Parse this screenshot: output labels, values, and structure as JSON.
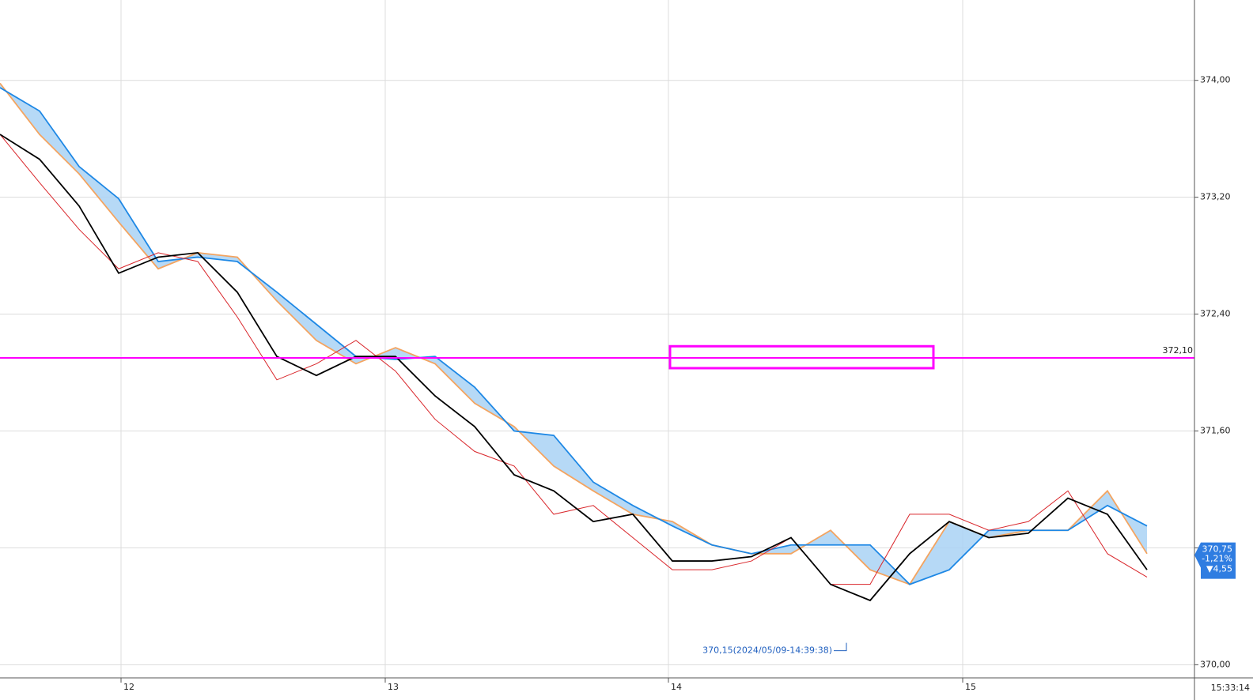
{
  "chart_data": {
    "type": "line",
    "xlim": [
      0,
      151
    ],
    "ylim": [
      369.91,
      374.55
    ],
    "xticks": [
      {
        "value": 15.3,
        "label": "12"
      },
      {
        "value": 48.7,
        "label": "13"
      },
      {
        "value": 84.5,
        "label": "14"
      },
      {
        "value": 121.7,
        "label": "15"
      }
    ],
    "yticks": [
      {
        "value": 370,
        "label": "370,00"
      },
      {
        "value": 370.8,
        "label": "370,80"
      },
      {
        "value": 371.6,
        "label": "371,60"
      },
      {
        "value": 372.4,
        "label": "372,40"
      },
      {
        "value": 373.2,
        "label": "373,20"
      },
      {
        "value": 374,
        "label": "374,00"
      }
    ],
    "grid": true,
    "x": [
      0,
      5,
      10,
      15,
      20,
      25,
      30,
      35,
      40,
      45,
      50,
      55,
      60,
      65,
      70,
      75,
      80,
      85,
      90,
      95,
      100,
      105,
      110,
      115,
      120,
      125,
      130,
      135,
      140,
      145
    ],
    "cloud_color": "#a9d2f5",
    "series": [
      {
        "color": "#d9262b",
        "values": [
          373.63,
          373.3,
          372.98,
          372.71,
          372.82,
          372.76,
          372.38,
          371.95,
          372.06,
          372.22,
          372.01,
          371.68,
          371.46,
          371.36,
          371.03,
          371.09,
          370.87,
          370.65,
          370.65,
          370.71,
          370.87,
          370.55,
          370.55,
          371.03,
          371.03,
          370.92,
          370.98,
          371.19,
          370.76,
          370.6
        ]
      },
      {
        "color": "#000000",
        "values": [
          373.63,
          373.46,
          373.14,
          372.68,
          372.79,
          372.82,
          372.55,
          372.11,
          371.98,
          372.11,
          372.11,
          371.84,
          371.63,
          371.3,
          371.19,
          370.98,
          371.03,
          370.71,
          370.71,
          370.74,
          370.87,
          370.55,
          370.44,
          370.76,
          370.98,
          370.87,
          370.9,
          371.14,
          371.03,
          370.65
        ]
      },
      {
        "color": "#f4a460",
        "values": [
          373.98,
          373.63,
          373.36,
          373.03,
          372.71,
          372.82,
          372.79,
          372.49,
          372.22,
          372.06,
          372.17,
          372.06,
          371.79,
          371.63,
          371.36,
          371.19,
          371.03,
          370.98,
          370.82,
          370.76,
          370.76,
          370.92,
          370.65,
          370.55,
          370.98,
          370.87,
          370.92,
          370.92,
          371.19,
          370.76
        ]
      },
      {
        "color": "#1e88e5",
        "values": [
          373.95,
          373.79,
          373.41,
          373.19,
          372.76,
          372.79,
          372.76,
          372.55,
          372.33,
          372.11,
          372.09,
          372.11,
          371.9,
          371.6,
          371.57,
          371.25,
          371.09,
          370.95,
          370.82,
          370.76,
          370.82,
          370.82,
          370.82,
          370.55,
          370.65,
          370.92,
          370.92,
          370.92,
          371.09,
          370.95
        ]
      }
    ],
    "hline": {
      "value": 372.1,
      "label": "372,10",
      "color": "#ff00ff"
    },
    "box": {
      "x": [
        84.7,
        118
      ],
      "y": [
        372.03,
        372.18
      ],
      "color": "#ff00ff"
    },
    "low_mark": {
      "x": 107,
      "value": 370.15,
      "label": "370,15(2024/05/09-14:39:38)"
    },
    "last_price": {
      "value": 370.75,
      "label": "370,75",
      "change_pct": "-1,21%",
      "change": "▼4,55"
    },
    "time_label": "15:33:14"
  }
}
